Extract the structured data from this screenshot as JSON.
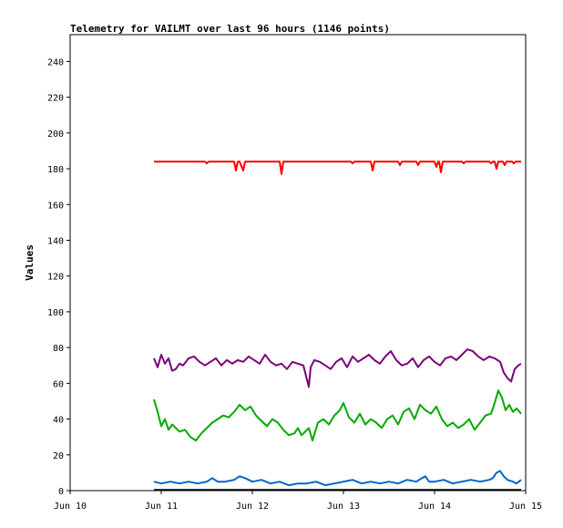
{
  "chart_data": {
    "type": "line",
    "title": "Telemetry for VAILMT over last 96 hours (1146 points)",
    "ylabel": "Values",
    "xlabel": "",
    "ylim": [
      0,
      255
    ],
    "xlim": [
      0,
      5
    ],
    "y_ticks": [
      0,
      20,
      40,
      60,
      80,
      100,
      120,
      140,
      160,
      180,
      200,
      220,
      240
    ],
    "x_ticks": [
      {
        "x": 0,
        "label": "Jun 10"
      },
      {
        "x": 1,
        "label": "Jun 11"
      },
      {
        "x": 2,
        "label": "Jun 12"
      },
      {
        "x": 3,
        "label": "Jun 13"
      },
      {
        "x": 4,
        "label": "Jun 14"
      },
      {
        "x": 5,
        "label": "Jun 15"
      }
    ],
    "grid": false,
    "legend": "none",
    "series": [
      {
        "color": "#ff0000",
        "x": [
          0.92,
          1.1,
          1.3,
          1.48,
          1.5,
          1.52,
          1.54,
          1.8,
          1.82,
          1.84,
          1.86,
          1.9,
          1.92,
          1.94,
          2.0,
          2.2,
          2.3,
          2.32,
          2.34,
          2.5,
          2.7,
          3.0,
          3.08,
          3.1,
          3.12,
          3.3,
          3.32,
          3.34,
          3.6,
          3.62,
          3.64,
          3.8,
          3.82,
          3.84,
          4.0,
          4.02,
          4.04,
          4.05,
          4.07,
          4.09,
          4.3,
          4.32,
          4.34,
          4.5,
          4.6,
          4.62,
          4.64,
          4.66,
          4.68,
          4.7,
          4.75,
          4.77,
          4.79,
          4.85,
          4.87,
          4.89,
          4.95
        ],
        "y": [
          184,
          184,
          184,
          184,
          183,
          184,
          184,
          184,
          179,
          184,
          184,
          179,
          184,
          184,
          184,
          184,
          184,
          177,
          184,
          184,
          184,
          184,
          184,
          183,
          184,
          184,
          179,
          184,
          184,
          182,
          184,
          184,
          182,
          184,
          184,
          181,
          184,
          184,
          178,
          184,
          184,
          183,
          184,
          184,
          184,
          183,
          184,
          184,
          180,
          184,
          184,
          182,
          184,
          184,
          183,
          184,
          184
        ]
      },
      {
        "color": "#7b007b",
        "x": [
          0.92,
          0.96,
          1.0,
          1.04,
          1.08,
          1.12,
          1.16,
          1.2,
          1.24,
          1.3,
          1.36,
          1.42,
          1.48,
          1.54,
          1.6,
          1.66,
          1.72,
          1.78,
          1.84,
          1.9,
          1.96,
          2.02,
          2.08,
          2.14,
          2.2,
          2.26,
          2.32,
          2.38,
          2.44,
          2.5,
          2.56,
          2.6,
          2.62,
          2.64,
          2.68,
          2.74,
          2.8,
          2.86,
          2.92,
          2.98,
          3.04,
          3.1,
          3.16,
          3.22,
          3.28,
          3.34,
          3.4,
          3.46,
          3.52,
          3.58,
          3.64,
          3.7,
          3.76,
          3.82,
          3.88,
          3.94,
          4.0,
          4.06,
          4.12,
          4.18,
          4.24,
          4.3,
          4.36,
          4.42,
          4.48,
          4.54,
          4.6,
          4.66,
          4.72,
          4.76,
          4.8,
          4.84,
          4.88,
          4.92,
          4.95
        ],
        "y": [
          74,
          69,
          76,
          71,
          74,
          67,
          68,
          71,
          70,
          74,
          75,
          72,
          70,
          72,
          74,
          70,
          73,
          71,
          73,
          72,
          75,
          73,
          71,
          76,
          72,
          70,
          71,
          68,
          72,
          71,
          70,
          62,
          58,
          69,
          73,
          72,
          70,
          68,
          72,
          74,
          69,
          75,
          72,
          74,
          76,
          73,
          71,
          75,
          78,
          73,
          70,
          71,
          74,
          69,
          73,
          75,
          72,
          70,
          74,
          75,
          73,
          76,
          79,
          78,
          75,
          73,
          75,
          74,
          72,
          66,
          63,
          61,
          68,
          70,
          71
        ]
      },
      {
        "color": "#00aa00",
        "x": [
          0.92,
          0.96,
          1.0,
          1.04,
          1.08,
          1.12,
          1.16,
          1.2,
          1.26,
          1.32,
          1.38,
          1.44,
          1.5,
          1.56,
          1.62,
          1.68,
          1.74,
          1.8,
          1.86,
          1.92,
          1.98,
          2.04,
          2.1,
          2.16,
          2.22,
          2.28,
          2.34,
          2.4,
          2.46,
          2.5,
          2.54,
          2.58,
          2.62,
          2.66,
          2.72,
          2.78,
          2.84,
          2.9,
          2.96,
          3.0,
          3.06,
          3.12,
          3.18,
          3.24,
          3.3,
          3.36,
          3.42,
          3.48,
          3.54,
          3.6,
          3.66,
          3.72,
          3.78,
          3.84,
          3.9,
          3.96,
          4.02,
          4.08,
          4.14,
          4.2,
          4.26,
          4.32,
          4.38,
          4.44,
          4.5,
          4.56,
          4.62,
          4.66,
          4.7,
          4.74,
          4.78,
          4.82,
          4.86,
          4.9,
          4.95
        ],
        "y": [
          51,
          44,
          36,
          40,
          34,
          37,
          35,
          33,
          34,
          30,
          28,
          32,
          35,
          38,
          40,
          42,
          41,
          44,
          48,
          45,
          47,
          42,
          39,
          36,
          40,
          38,
          34,
          31,
          32,
          35,
          31,
          33,
          35,
          28,
          38,
          40,
          37,
          42,
          45,
          49,
          41,
          38,
          43,
          37,
          40,
          38,
          35,
          40,
          42,
          37,
          44,
          46,
          40,
          48,
          45,
          43,
          47,
          40,
          36,
          38,
          35,
          37,
          40,
          34,
          38,
          42,
          43,
          49,
          56,
          52,
          45,
          48,
          44,
          46,
          43
        ]
      },
      {
        "color": "#0066cc",
        "x": [
          0.92,
          1.0,
          1.1,
          1.2,
          1.3,
          1.4,
          1.5,
          1.56,
          1.62,
          1.7,
          1.8,
          1.86,
          1.92,
          2.0,
          2.1,
          2.2,
          2.3,
          2.4,
          2.5,
          2.6,
          2.7,
          2.8,
          2.9,
          3.0,
          3.1,
          3.2,
          3.3,
          3.4,
          3.5,
          3.6,
          3.7,
          3.8,
          3.86,
          3.9,
          3.94,
          4.0,
          4.1,
          4.2,
          4.3,
          4.4,
          4.5,
          4.6,
          4.64,
          4.68,
          4.72,
          4.76,
          4.8,
          4.86,
          4.9,
          4.95
        ],
        "y": [
          5,
          4,
          5,
          4,
          5,
          4,
          5,
          7,
          5,
          5,
          6,
          8,
          7,
          5,
          6,
          4,
          5,
          3,
          4,
          4,
          5,
          3,
          4,
          5,
          6,
          4,
          5,
          4,
          5,
          4,
          6,
          5,
          7,
          8,
          5,
          5,
          6,
          4,
          5,
          6,
          5,
          6,
          7,
          10,
          11,
          8,
          6,
          5,
          4,
          6
        ]
      },
      {
        "color": "#000000",
        "x": [
          0.92,
          4.95
        ],
        "y": [
          0.4,
          0.4
        ]
      }
    ]
  }
}
